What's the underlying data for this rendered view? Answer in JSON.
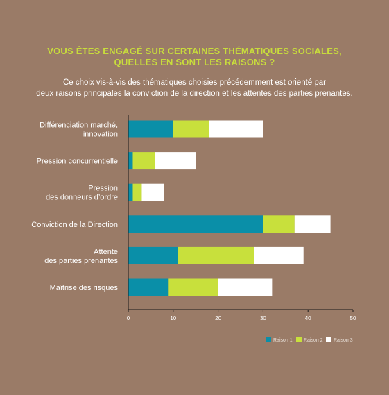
{
  "colors": {
    "background": "#9a7b67",
    "title": "#c8dc3c",
    "raison1": "#0a8fa8",
    "raison2": "#c8e03c",
    "raison3": "#ffffff",
    "axis": "#1a1a1a"
  },
  "header": {
    "title_line1": "VOUS ÊTES ENGAGÉ SUR CERTAINES THÉMATIQUES SOCIALES,",
    "title_line2": "QUELLES EN SONT LES RAISONS ?",
    "subtitle_line1": "Ce choix vis-à-vis des thématiques choisies précédemment est orienté par",
    "subtitle_line2": "deux raisons principales la conviction de la direction et les attentes des parties prenantes."
  },
  "chart_data": {
    "type": "bar",
    "orientation": "horizontal",
    "stacked": true,
    "categories": [
      [
        "Différenciation marché,",
        "innovation"
      ],
      [
        "Pression concurrentielle"
      ],
      [
        "Pression",
        "des donneurs d’ordre"
      ],
      [
        "Conviction de la Direction"
      ],
      [
        "Attente",
        "des parties prenantes"
      ],
      [
        "Maîtrise des risques"
      ]
    ],
    "series": [
      {
        "name": "Raison 1",
        "values": [
          10,
          1,
          1,
          30,
          11,
          9
        ]
      },
      {
        "name": "Raison 2",
        "values": [
          8,
          5,
          2,
          7,
          17,
          11
        ]
      },
      {
        "name": "Raison 3",
        "values": [
          12,
          9,
          5,
          8,
          11,
          12
        ]
      }
    ],
    "xlim": [
      0,
      50
    ],
    "xticks": [
      0,
      10,
      20,
      30,
      40,
      50
    ],
    "grid": false,
    "legend_position": "bottom-right"
  }
}
